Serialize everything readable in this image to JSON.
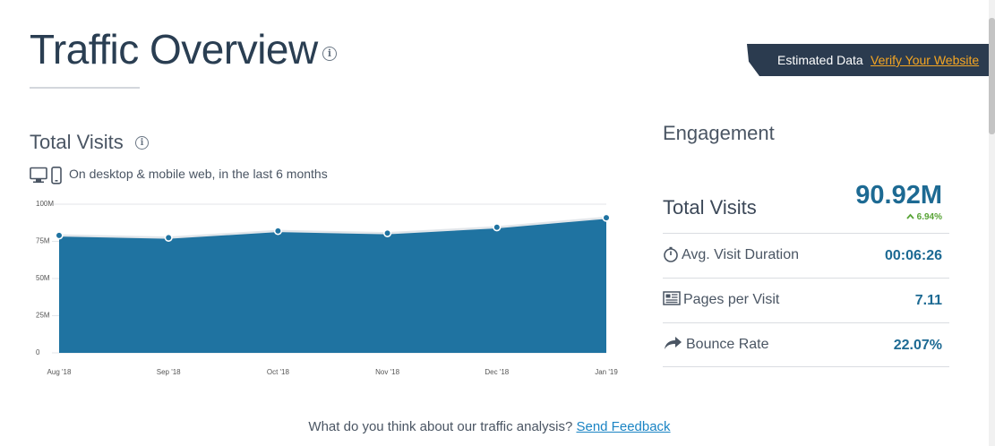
{
  "header": {
    "title": "Traffic Overview",
    "info_icon": "info-icon"
  },
  "banner": {
    "label": "Estimated Data",
    "link": "Verify Your Website",
    "link_color": "#f5a623"
  },
  "total_visits_section": {
    "title": "Total Visits",
    "subtitle": "On desktop & mobile web, in the last 6 months",
    "icons": [
      "desktop-icon",
      "mobile-icon"
    ]
  },
  "chart_data": {
    "type": "area",
    "categories": [
      "Aug '18",
      "Sep '18",
      "Oct '18",
      "Nov '18",
      "Dec '18",
      "Jan '19"
    ],
    "series": [
      {
        "values": [
          79000000,
          77500000,
          82000000,
          80500000,
          84500000,
          90920000
        ]
      }
    ],
    "ylim": [
      0,
      100000000
    ],
    "y_ticks": [
      0,
      25000000,
      50000000,
      75000000,
      100000000
    ],
    "y_tick_labels": [
      "0",
      "25M",
      "50M",
      "75M",
      "100M"
    ],
    "grid": true,
    "color": "#1f73a1"
  },
  "engagement": {
    "title": "Engagement",
    "total_visits_label": "Total Visits",
    "total_visits_value": "90.92M",
    "total_visits_change": "6.94%",
    "change_color": "#57a335",
    "metrics": [
      {
        "label": "Avg. Visit Duration",
        "value": "00:06:26",
        "icon": "stopwatch-icon"
      },
      {
        "label": "Pages per Visit",
        "value": "7.11",
        "icon": "pages-icon"
      },
      {
        "label": "Bounce Rate",
        "value": "22.07%",
        "icon": "bounce-arrow-icon"
      }
    ]
  },
  "feedback": {
    "question": "What do you think about our traffic analysis?",
    "link": "Send Feedback"
  }
}
